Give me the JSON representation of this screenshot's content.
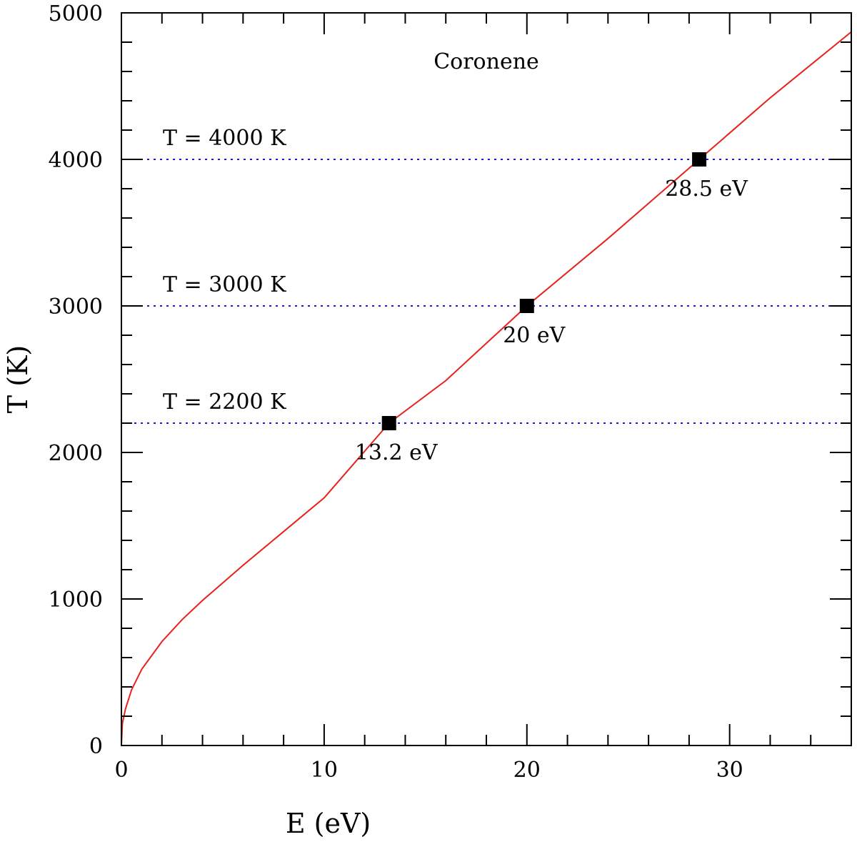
{
  "chart_data": {
    "type": "line",
    "title": "Coronene",
    "xlabel": "E (eV)",
    "ylabel": "T (K)",
    "xlim": [
      0,
      36
    ],
    "ylim": [
      0,
      5000
    ],
    "x_ticks": [
      0,
      10,
      20,
      30
    ],
    "y_ticks": [
      0,
      1000,
      2000,
      3000,
      4000,
      5000
    ],
    "x_minor_step": 2,
    "y_minor_step": 200,
    "grid": false,
    "series": [
      {
        "color": "#e8211d",
        "x": [
          0,
          0.05,
          0.2,
          0.5,
          1,
          2,
          3,
          4,
          5,
          6,
          8,
          10,
          13.2,
          16,
          20,
          24,
          28.5,
          32,
          36
        ],
        "y": [
          0,
          150,
          250,
          380,
          520,
          710,
          860,
          990,
          1110,
          1230,
          1460,
          1690,
          2200,
          2490,
          3000,
          3460,
          4000,
          4420,
          4870
        ]
      }
    ],
    "reference_lines": [
      {
        "y": 4000,
        "label": "T = 4000 K",
        "color": "#1a1ad8"
      },
      {
        "y": 3000,
        "label": "T = 3000 K",
        "color": "#1a1ad8"
      },
      {
        "y": 2200,
        "label": "T = 2200 K",
        "color": "#1a1ad8"
      }
    ],
    "markers": [
      {
        "x": 13.2,
        "y": 2200,
        "label": "13.2 eV"
      },
      {
        "x": 20,
        "y": 3000,
        "label": "20 eV"
      },
      {
        "x": 28.5,
        "y": 4000,
        "label": "28.5 eV"
      }
    ]
  }
}
